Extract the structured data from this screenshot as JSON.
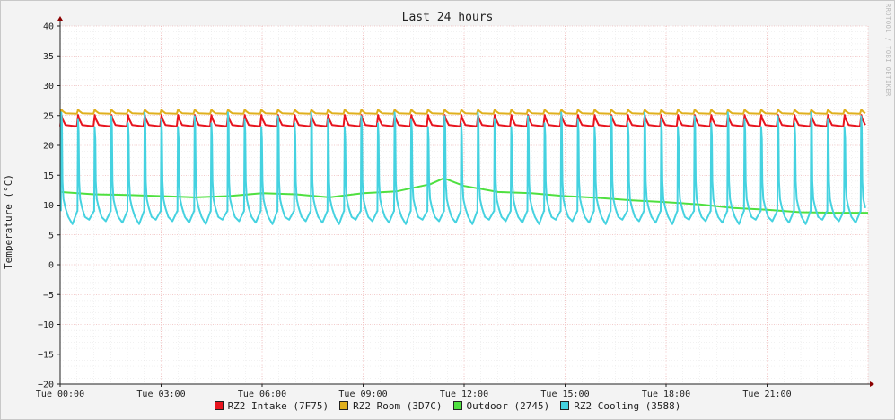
{
  "chart_data": {
    "type": "line",
    "title": "Last 24 hours",
    "ylabel": "Temperature (°C)",
    "watermark": "RRDTOOL / TOBI OETIKER",
    "ylim": [
      -20,
      40
    ],
    "yticks": [
      40,
      35,
      30,
      25,
      20,
      15,
      10,
      5,
      0,
      -5,
      -10,
      -15,
      -20
    ],
    "xlim_hours": [
      0,
      24
    ],
    "xticks": [
      {
        "hour": 0,
        "label": "Tue 00:00"
      },
      {
        "hour": 3,
        "label": "Tue 03:00"
      },
      {
        "hour": 6,
        "label": "Tue 06:00"
      },
      {
        "hour": 9,
        "label": "Tue 09:00"
      },
      {
        "hour": 12,
        "label": "Tue 12:00"
      },
      {
        "hour": 15,
        "label": "Tue 15:00"
      },
      {
        "hour": 18,
        "label": "Tue 18:00"
      },
      {
        "hour": 21,
        "label": "Tue 21:00"
      }
    ],
    "grid": true,
    "legend_position": "bottom",
    "series": [
      {
        "name": "RZ2 Intake (7F75)",
        "color": "#e8141e",
        "pattern": "sawtooth",
        "base": 23.2,
        "peak": 25.1,
        "cycle_hours": 0.495
      },
      {
        "name": "RZ2 Room (3D7C)",
        "color": "#e0b01e",
        "pattern": "sawtooth",
        "base": 25.3,
        "peak": 26.0,
        "cycle_hours": 0.495
      },
      {
        "name": "Outdoor (2745)",
        "color": "#4fe040",
        "pattern": "trend",
        "points": [
          [
            0,
            12.2
          ],
          [
            1,
            11.8
          ],
          [
            2,
            11.7
          ],
          [
            3,
            11.5
          ],
          [
            4,
            11.3
          ],
          [
            5,
            11.5
          ],
          [
            6,
            12.0
          ],
          [
            7,
            11.8
          ],
          [
            8,
            11.3
          ],
          [
            9,
            12.0
          ],
          [
            10,
            12.3
          ],
          [
            11,
            13.5
          ],
          [
            11.4,
            14.5
          ],
          [
            12,
            13.2
          ],
          [
            13,
            12.2
          ],
          [
            14,
            12.0
          ],
          [
            15,
            11.5
          ],
          [
            16,
            11.2
          ],
          [
            17,
            10.8
          ],
          [
            18,
            10.5
          ],
          [
            19,
            10.1
          ],
          [
            20,
            9.5
          ],
          [
            21,
            9.2
          ],
          [
            22,
            8.8
          ],
          [
            23,
            8.7
          ],
          [
            24,
            8.7
          ]
        ]
      },
      {
        "name": "RZ2 Cooling (3588)",
        "color": "#45d2e0",
        "pattern": "spikes",
        "base": 8.0,
        "low": 6.8,
        "peak": 25.5,
        "cycle_hours": 0.495
      }
    ]
  }
}
